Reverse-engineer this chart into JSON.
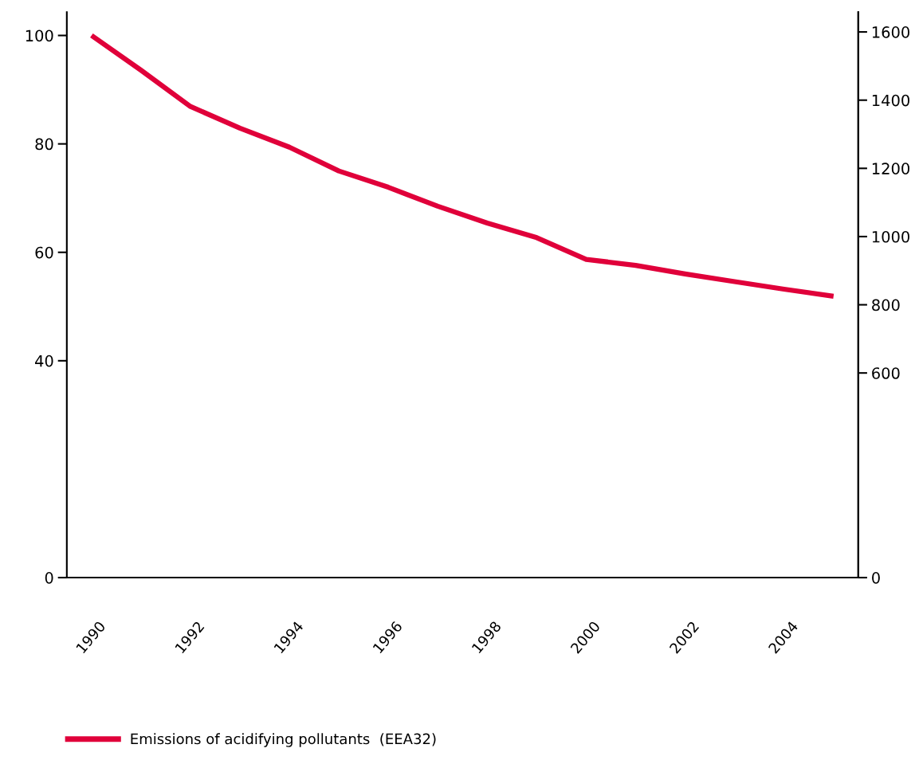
{
  "chart_data": {
    "type": "line",
    "categories": [
      "1990",
      null,
      "1992",
      null,
      "1994",
      null,
      "1996",
      null,
      "1998",
      null,
      "2000",
      null,
      "2002",
      null,
      "2004",
      null
    ],
    "series": [
      {
        "name": "Emissions of acidifying pollutants  (EEA32)",
        "color": "#e0003a",
        "values": [
          100,
          93.6,
          86.9,
          82.9,
          79.4,
          75.0,
          72.0,
          68.5,
          65.4,
          62.7,
          58.7,
          57.6,
          56.0,
          54.6,
          53.2,
          51.9
        ]
      }
    ],
    "ylim": [
      0,
      104.3
    ],
    "yticks": [
      0,
      40,
      60,
      80,
      100
    ],
    "y2lim": [
      0,
      1658
    ],
    "y2ticks": [
      0,
      600,
      800,
      1000,
      1200,
      1400,
      1600
    ],
    "grid": false,
    "legend": "bottom left",
    "marker": "none",
    "line_style": "solid"
  }
}
